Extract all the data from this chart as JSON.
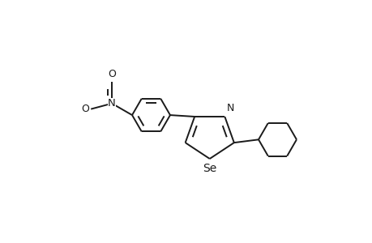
{
  "background_color": "#ffffff",
  "line_color": "#1a1a1a",
  "line_width": 1.4,
  "font_size_se": 10,
  "font_size_n": 9,
  "font_size_o": 9,
  "figsize": [
    4.6,
    3.0
  ],
  "dpi": 100,
  "xlim": [
    -2.4,
    2.4
  ],
  "ylim": [
    -1.5,
    1.5
  ]
}
